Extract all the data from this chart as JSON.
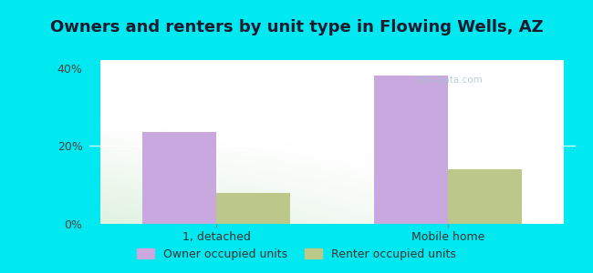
{
  "title": "Owners and renters by unit type in Flowing Wells, AZ",
  "categories": [
    "1, detached",
    "Mobile home"
  ],
  "owner_values": [
    23.5,
    38.0
  ],
  "renter_values": [
    8.0,
    14.0
  ],
  "owner_color": "#c9a8e0",
  "renter_color": "#bcc88a",
  "owner_label": "Owner occupied units",
  "renter_label": "Renter occupied units",
  "yticks": [
    0,
    20,
    40
  ],
  "yticklabels": [
    "0%",
    "20%",
    "40%"
  ],
  "ylim": [
    0,
    42
  ],
  "bg_outer": "#00e8f0",
  "title_fontsize": 13,
  "bar_width": 0.32,
  "watermark": "City-Data.com"
}
